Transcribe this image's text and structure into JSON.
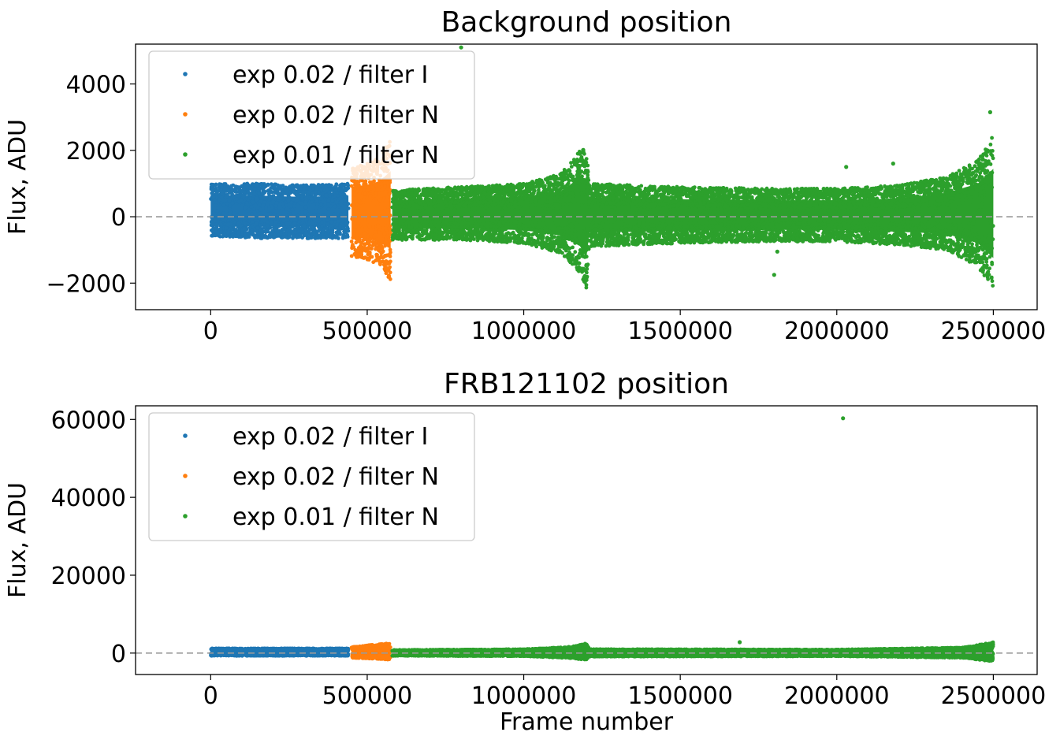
{
  "chart_data": [
    {
      "type": "scatter",
      "title": "Background position",
      "xlabel": "",
      "ylabel": "Flux, ADU",
      "xlim": [
        -240000,
        2640000
      ],
      "ylim": [
        -2800,
        5200
      ],
      "xticks": [
        0,
        500000,
        1000000,
        1500000,
        2000000,
        2500000
      ],
      "xtick_labels": [
        "0",
        "500000",
        "1000000",
        "1500000",
        "2000000",
        "2500000"
      ],
      "yticks": [
        -2000,
        0,
        2000,
        4000
      ],
      "ytick_labels": [
        "−2000",
        "0",
        "2000",
        "4000"
      ],
      "zero_line": true,
      "legend_position": "upper-left",
      "series": [
        {
          "name": "exp 0.02 / filter I",
          "color": "#1f77b4",
          "envelope": [
            [
              0,
              -600,
              1000
            ],
            [
              150000,
              -650,
              1000
            ],
            [
              300000,
              -650,
              950
            ],
            [
              440000,
              -650,
              1000
            ]
          ]
        },
        {
          "name": "exp 0.02 / filter N",
          "color": "#ff7f0e",
          "envelope": [
            [
              450000,
              -1200,
              1500
            ],
            [
              500000,
              -1300,
              1600
            ],
            [
              540000,
              -1500,
              1800
            ],
            [
              575000,
              -1900,
              2300
            ]
          ]
        },
        {
          "name": "exp 0.01 / filter N",
          "color": "#2ca02c",
          "envelope": [
            [
              580000,
              -700,
              800
            ],
            [
              800000,
              -700,
              900
            ],
            [
              1000000,
              -800,
              1000
            ],
            [
              1120000,
              -1100,
              1300
            ],
            [
              1180000,
              -1700,
              2000
            ],
            [
              1200000,
              -2200,
              2100
            ],
            [
              1210000,
              -900,
              1000
            ],
            [
              1500000,
              -800,
              900
            ],
            [
              1800000,
              -750,
              850
            ],
            [
              2000000,
              -750,
              850
            ],
            [
              2200000,
              -850,
              950
            ],
            [
              2350000,
              -1000,
              1200
            ],
            [
              2450000,
              -1500,
              1700
            ],
            [
              2500000,
              -2300,
              2500
            ]
          ],
          "outliers": [
            [
              800000,
              5100
            ],
            [
              2030000,
              1500
            ],
            [
              2180000,
              1600
            ],
            [
              1800000,
              -1750
            ],
            [
              1810000,
              -1050
            ],
            [
              2490000,
              3150
            ]
          ]
        }
      ]
    },
    {
      "type": "scatter",
      "title": "FRB121102 position",
      "xlabel": "Frame number",
      "ylabel": "Flux, ADU",
      "xlim": [
        -240000,
        2640000
      ],
      "ylim": [
        -5500,
        63500
      ],
      "xticks": [
        0,
        500000,
        1000000,
        1500000,
        2000000,
        2500000
      ],
      "xtick_labels": [
        "0",
        "500000",
        "1000000",
        "1500000",
        "2000000",
        "2500000"
      ],
      "yticks": [
        0,
        20000,
        40000,
        60000
      ],
      "ytick_labels": [
        "0",
        "20000",
        "40000",
        "60000"
      ],
      "zero_line": true,
      "legend_position": "upper-left",
      "series": [
        {
          "name": "exp 0.02 / filter I",
          "color": "#1f77b4",
          "envelope": [
            [
              0,
              -700,
              1200
            ],
            [
              440000,
              -700,
              1200
            ]
          ]
        },
        {
          "name": "exp 0.02 / filter N",
          "color": "#ff7f0e",
          "envelope": [
            [
              450000,
              -1200,
              1500
            ],
            [
              575000,
              -1700,
              2700
            ]
          ]
        },
        {
          "name": "exp 0.01 / filter N",
          "color": "#2ca02c",
          "envelope": [
            [
              580000,
              -700,
              800
            ],
            [
              1000000,
              -800,
              1000
            ],
            [
              1150000,
              -1300,
              1600
            ],
            [
              1200000,
              -1800,
              2500
            ],
            [
              1210000,
              -900,
              1000
            ],
            [
              2000000,
              -800,
              900
            ],
            [
              2400000,
              -1200,
              1400
            ],
            [
              2500000,
              -2200,
              2800
            ]
          ],
          "outliers": [
            [
              2020000,
              60300
            ],
            [
              1690000,
              2800
            ]
          ]
        }
      ]
    }
  ]
}
